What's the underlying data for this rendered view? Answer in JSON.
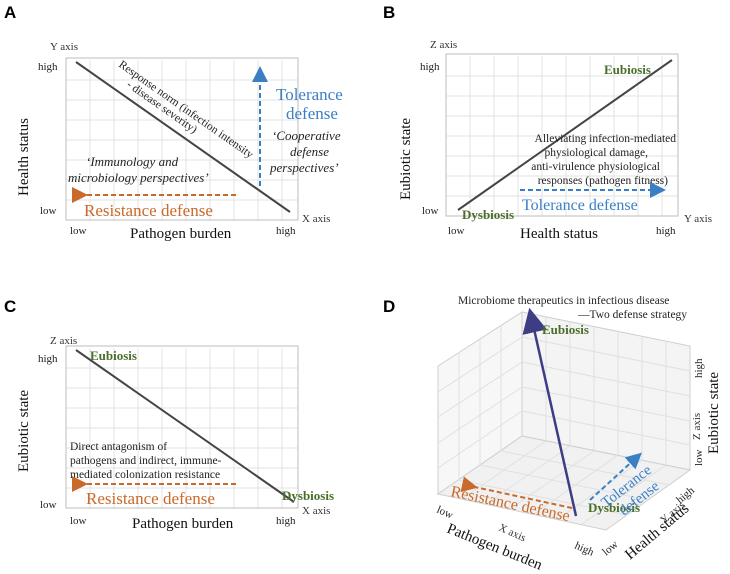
{
  "panels": {
    "A": {
      "letter": "A",
      "y_axis_name": "Y axis",
      "x_axis_name": "X axis",
      "y_label": "Health status",
      "x_label": "Pathogen burden",
      "y_high": "high",
      "y_low": "low",
      "x_low": "low",
      "x_high": "high",
      "line_label_1": "Response norm (infection intensity",
      "line_label_2": "- disease severity)",
      "tolerance_1": "Tolerance",
      "tolerance_2": "defense",
      "coop_1": "‘Cooperative",
      "coop_2": "defense",
      "coop_3": "perspectives’",
      "immuno_1": "‘Immunology and",
      "immuno_2": "microbiology perspectives’",
      "resistance": "Resistance defense"
    },
    "B": {
      "letter": "B",
      "z_axis_name": "Z axis",
      "y_axis_name": "Y axis",
      "y_label": "Eubiotic state",
      "x_label": "Health status",
      "y_high": "high",
      "y_low": "low",
      "x_low": "low",
      "x_high": "high",
      "eubiosis": "Eubiosis",
      "dysbiosis": "Dysbiosis",
      "note_1": "Alleviating infection-mediated",
      "note_2": "physiological damage,",
      "note_3": "anti-virulence physiological",
      "note_4": "responses (pathogen fitness)",
      "tolerance": "Tolerance defense"
    },
    "C": {
      "letter": "C",
      "z_axis_name": "Z axis",
      "x_axis_name": "X axis",
      "y_label": "Eubiotic state",
      "x_label": "Pathogen burden",
      "y_high": "high",
      "y_low": "low",
      "x_low": "low",
      "x_high": "high",
      "eubiosis": "Eubiosis",
      "dysbiosis": "Dysbiosis",
      "note_1": "Direct antagonism of",
      "note_2": "pathogens and indirect, immune-",
      "note_3": "mediated colonization resistance",
      "resistance": "Resistance defense"
    },
    "D": {
      "letter": "D",
      "title_1": "Microbiome therapeutics in infectious disease",
      "title_2": "—Two defense strategy",
      "eubiosis": "Eubiosis",
      "dysbiosis": "Dysbiosis",
      "resistance": "Resistance defense",
      "tolerance_1": "Tolerance",
      "tolerance_2": "defense",
      "x_axis_name": "X axis",
      "y_axis_name": "Y axis",
      "z_axis_name": "Z axis",
      "x_label": "Pathogen burden",
      "y_label": "Health status",
      "z_label": "Eubiotic state",
      "high": "high",
      "low": "low"
    }
  },
  "colors": {
    "orange": "#c9692a",
    "blue": "#3a7fc4",
    "green": "#4a6e2a",
    "navy": "#3d3d86"
  }
}
